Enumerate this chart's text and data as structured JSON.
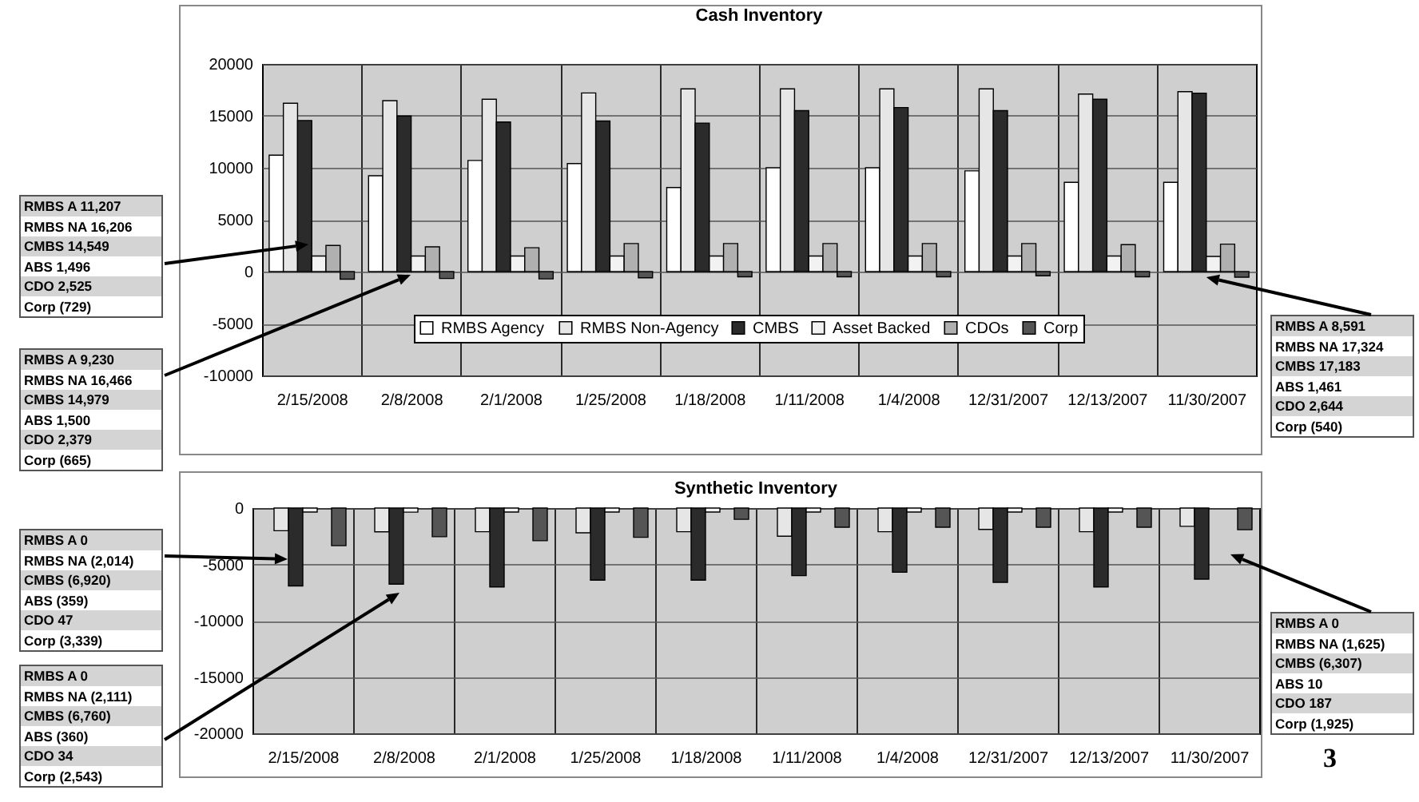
{
  "chart_data": [
    {
      "type": "bar",
      "title": "Cash Inventory",
      "categories": [
        "2/15/2008",
        "2/8/2008",
        "2/1/2008",
        "1/25/2008",
        "1/18/2008",
        "1/11/2008",
        "1/4/2008",
        "12/31/2007",
        "12/13/2007",
        "11/30/2007"
      ],
      "series": [
        {
          "name": "RMBS Agency",
          "color": "#ffffff",
          "values": [
            11207,
            9230,
            10700,
            10400,
            8100,
            10000,
            10000,
            9700,
            8600,
            8591
          ]
        },
        {
          "name": "RMBS Non-Agency",
          "color": "#e6e6e6",
          "values": [
            16206,
            16466,
            16600,
            17200,
            17600,
            17600,
            17600,
            17600,
            17100,
            17324
          ]
        },
        {
          "name": "CMBS",
          "color": "#2b2b2b",
          "values": [
            14549,
            14979,
            14400,
            14500,
            14300,
            15500,
            15800,
            15500,
            16600,
            17183
          ]
        },
        {
          "name": "Asset Backed",
          "color": "#f2f2f2",
          "values": [
            1496,
            1500,
            1500,
            1500,
            1500,
            1500,
            1500,
            1500,
            1500,
            1461
          ]
        },
        {
          "name": "CDOs",
          "color": "#b0b0b0",
          "values": [
            2525,
            2379,
            2300,
            2700,
            2700,
            2700,
            2700,
            2700,
            2600,
            2644
          ]
        },
        {
          "name": "Corp",
          "color": "#555555",
          "values": [
            -729,
            -665,
            -700,
            -600,
            -500,
            -500,
            -500,
            -400,
            -500,
            -540
          ]
        }
      ],
      "ylim": [
        -10000,
        20000
      ],
      "yticks": [
        -10000,
        -5000,
        0,
        5000,
        10000,
        15000,
        20000
      ],
      "grid": true,
      "legend": "bottom",
      "annotations": [
        "RMBS A 11,207\nRMBS NA 16,206\nCMBS 14,549\nABS 1,496\nCDO 2,525\nCorp (729)",
        "RMBS A 9,230\nRMBS NA 16,466\nCMBS 14,979\nABS 1,500\nCDO 2,379\nCorp (665)",
        {
          "text": "RMBS A 8,591\nRMBS NA 17,324\nCMBS 17,183\nABS 1,461\nCDO 2,644\nCorp (540)",
          "x": "11/30/2007",
          "y": -540
        }
      ]
    },
    {
      "type": "bar",
      "title": "Synthetic Inventory",
      "categories": [
        "2/15/2008",
        "2/8/2008",
        "2/1/2008",
        "1/25/2008",
        "1/18/2008",
        "1/11/2008",
        "1/4/2008",
        "12/31/2007",
        "12/13/2007",
        "11/30/2007"
      ],
      "series": [
        {
          "color": "#ffffff",
          "values": [
            0,
            0,
            0,
            0,
            0,
            0,
            0,
            0,
            0,
            0
          ]
        },
        {
          "color": "#e6e6e6",
          "values": [
            -2014,
            -2111,
            -2100,
            -2200,
            -2100,
            -2500,
            -2100,
            -1900,
            -2100,
            -1625
          ]
        },
        {
          "color": "#2b2b2b",
          "values": [
            -6920,
            -6760,
            -7000,
            -6400,
            -6400,
            -6000,
            -5700,
            -6600,
            -7000,
            -6307
          ]
        },
        {
          "color": "#f2f2f2",
          "values": [
            -359,
            -360,
            -350,
            -350,
            -350,
            -350,
            -350,
            -350,
            -350,
            null
          ]
        },
        {
          "color": "#b0b0b0",
          "values": [
            null,
            null,
            null,
            null,
            null,
            null,
            null,
            null,
            null,
            null
          ]
        },
        {
          "color": "#555555",
          "values": [
            -3339,
            -2543,
            -2900,
            -2600,
            -1000,
            -1700,
            -1700,
            -1700,
            -1700,
            -1925
          ]
        }
      ],
      "ylim": [
        -20000,
        0
      ],
      "yticks": [
        -20000,
        -15000,
        -10000,
        -5000,
        0
      ],
      "grid": true,
      "annotations": [
        "RMBS A 0\nRMBS NA (2,014)\nCMBS (6,920)\nABS (359)\nCDO 47\nCorp (3,339)",
        "RMBS A 0\nRMBS NA (2,111)\nCMBS (6,760)\nABS (360)\nCDO 34\nCorp (2,543)",
        "RMBS A 0\nRMBS NA (1,625)\nCMBS (6,307)\nABS 10\nCDO 187\nCorp (1,925)",
        "3"
      ]
    }
  ]
}
